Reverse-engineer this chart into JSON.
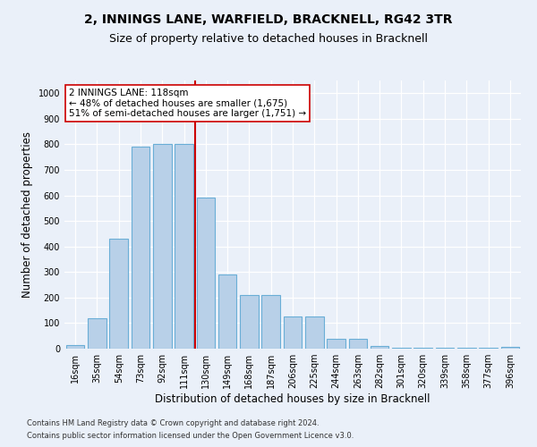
{
  "title": "2, INNINGS LANE, WARFIELD, BRACKNELL, RG42 3TR",
  "subtitle": "Size of property relative to detached houses in Bracknell",
  "xlabel": "Distribution of detached houses by size in Bracknell",
  "ylabel": "Number of detached properties",
  "categories": [
    "16sqm",
    "35sqm",
    "54sqm",
    "73sqm",
    "92sqm",
    "111sqm",
    "130sqm",
    "149sqm",
    "168sqm",
    "187sqm",
    "206sqm",
    "225sqm",
    "244sqm",
    "263sqm",
    "282sqm",
    "301sqm",
    "320sqm",
    "339sqm",
    "358sqm",
    "377sqm",
    "396sqm"
  ],
  "values": [
    15,
    120,
    430,
    790,
    800,
    800,
    590,
    290,
    210,
    210,
    125,
    125,
    38,
    38,
    12,
    5,
    5,
    5,
    5,
    5,
    8
  ],
  "bar_color": "#b8d0e8",
  "bar_edge_color": "#6aaed6",
  "vline_x": 5.5,
  "vline_color": "#cc0000",
  "annotation_text": "2 INNINGS LANE: 118sqm\n← 48% of detached houses are smaller (1,675)\n51% of semi-detached houses are larger (1,751) →",
  "annotation_box_facecolor": "#ffffff",
  "annotation_box_edgecolor": "#cc0000",
  "ylim": [
    0,
    1050
  ],
  "yticks": [
    0,
    100,
    200,
    300,
    400,
    500,
    600,
    700,
    800,
    900,
    1000
  ],
  "footer1": "Contains HM Land Registry data © Crown copyright and database right 2024.",
  "footer2": "Contains public sector information licensed under the Open Government Licence v3.0.",
  "bg_color": "#eaf0f9",
  "plot_bg_color": "#eaf0f9",
  "grid_color": "#ffffff",
  "title_fontsize": 10,
  "subtitle_fontsize": 9,
  "axis_label_fontsize": 8.5,
  "tick_fontsize": 7,
  "annotation_fontsize": 7.5,
  "footer_fontsize": 6
}
